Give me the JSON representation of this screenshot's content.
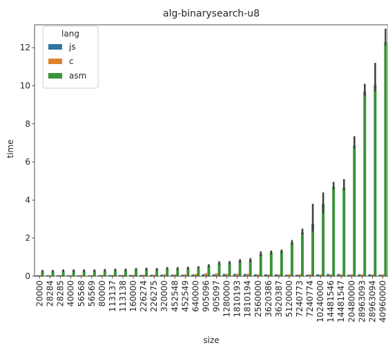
{
  "chart_data": {
    "type": "bar",
    "title": "alg-binarysearch-u8",
    "xlabel": "size",
    "ylabel": "time",
    "ylim": [
      0,
      13.2
    ],
    "yticks": [
      0,
      2,
      4,
      6,
      8,
      10,
      12
    ],
    "grid": false,
    "legend_title": "lang",
    "legend_position": "top-left",
    "categories": [
      "20000",
      "28284",
      "28285",
      "40000",
      "56568",
      "56569",
      "80000",
      "113137",
      "113138",
      "160000",
      "226274",
      "226275",
      "320000",
      "452548",
      "452549",
      "640000",
      "905096",
      "905097",
      "1280000",
      "1810193",
      "1810194",
      "2560000",
      "3620386",
      "3620387",
      "5120000",
      "7240773",
      "7240774",
      "10240000",
      "14481546",
      "14481547",
      "20480000",
      "28963093",
      "28963094",
      "40960000"
    ],
    "series": [
      {
        "name": "js",
        "color": "#3274a1",
        "values": [
          0.05,
          0.05,
          0.05,
          0.05,
          0.05,
          0.05,
          0.06,
          0.06,
          0.06,
          0.07,
          0.07,
          0.07,
          0.08,
          0.08,
          0.08,
          0.09,
          0.1,
          0.1,
          0.12,
          0.12,
          0.12,
          0.1,
          0.1,
          0.1,
          0.08,
          0.08,
          0.08,
          0.1,
          0.12,
          0.12,
          0.08,
          0.1,
          0.1,
          0.08
        ]
      },
      {
        "name": "c",
        "color": "#e1812c",
        "values": [
          0.05,
          0.06,
          0.06,
          0.06,
          0.06,
          0.06,
          0.07,
          0.07,
          0.07,
          0.08,
          0.08,
          0.08,
          0.1,
          0.1,
          0.1,
          0.12,
          0.15,
          0.15,
          0.13,
          0.13,
          0.13,
          0.1,
          0.1,
          0.1,
          0.1,
          0.1,
          0.1,
          0.1,
          0.1,
          0.1,
          0.1,
          0.1,
          0.1,
          0.1
        ]
      },
      {
        "name": "asm",
        "color": "#3a923a",
        "values": [
          0.25,
          0.25,
          0.28,
          0.28,
          0.28,
          0.28,
          0.3,
          0.32,
          0.32,
          0.35,
          0.38,
          0.36,
          0.4,
          0.4,
          0.42,
          0.45,
          0.55,
          0.68,
          0.7,
          0.8,
          0.85,
          1.15,
          1.25,
          1.3,
          1.75,
          2.3,
          2.75,
          3.8,
          4.7,
          4.65,
          6.85,
          9.7,
          10.05,
          12.3
        ],
        "err_low": [
          0.2,
          0.2,
          0.22,
          0.22,
          0.22,
          0.22,
          0.25,
          0.27,
          0.27,
          0.3,
          0.33,
          0.31,
          0.35,
          0.35,
          0.37,
          0.4,
          0.48,
          0.6,
          0.62,
          0.72,
          0.75,
          1.05,
          1.15,
          1.2,
          1.65,
          2.2,
          2.35,
          3.3,
          4.55,
          4.5,
          6.7,
          9.45,
          9.7,
          12.1
        ],
        "err_high": [
          0.33,
          0.33,
          0.36,
          0.36,
          0.36,
          0.36,
          0.38,
          0.4,
          0.4,
          0.43,
          0.45,
          0.43,
          0.48,
          0.48,
          0.5,
          0.53,
          0.63,
          0.78,
          0.8,
          0.9,
          0.95,
          1.3,
          1.35,
          1.4,
          1.9,
          2.5,
          3.8,
          4.4,
          4.95,
          5.1,
          7.35,
          10.1,
          11.2,
          13.0
        ]
      }
    ]
  }
}
